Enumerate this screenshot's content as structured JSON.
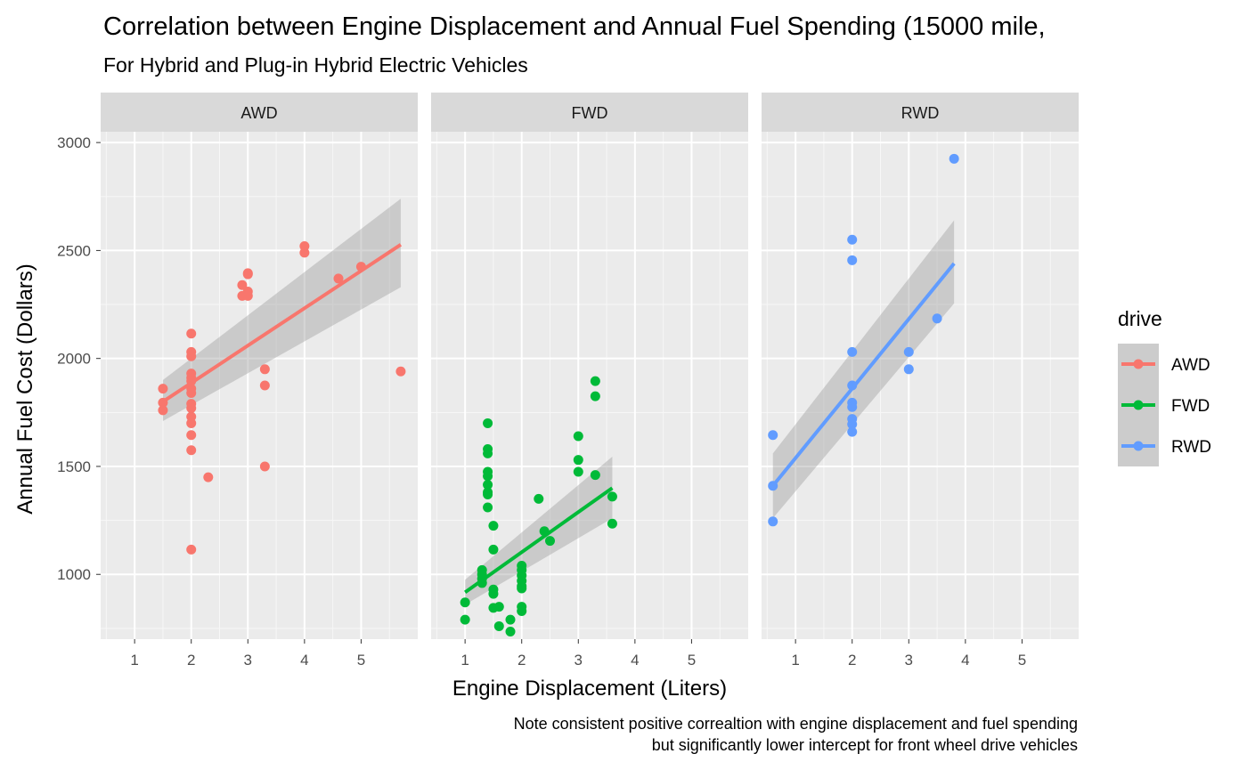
{
  "chart_data": {
    "type": "scatter",
    "title": "Correlation between Engine Displacement and Annual Fuel Spending (15000 mile,",
    "subtitle": "For Hybrid and Plug-in Hybrid Electric Vehicles",
    "xlabel": "Engine Displacement (Liters)",
    "ylabel": "Annual Fuel Cost (Dollars)",
    "caption": [
      "Note consistent positive correaltion with engine displacement and fuel spending",
      "but significantly lower intercept for front wheel drive vehicles"
    ],
    "xlim": [
      0.4,
      6.0
    ],
    "ylim": [
      700,
      3050
    ],
    "xticks": [
      1,
      2,
      3,
      4,
      5
    ],
    "yticks": [
      1000,
      1500,
      2000,
      2500,
      3000
    ],
    "grid": true,
    "legend": {
      "title": "drive",
      "position": "right",
      "entries": [
        "AWD",
        "FWD",
        "RWD"
      ]
    },
    "series": [
      {
        "name": "AWD",
        "color": "#F8766D",
        "x": [
          1.5,
          1.5,
          1.5,
          2,
          2,
          2,
          2,
          2,
          2,
          2,
          2,
          2,
          2,
          2,
          2,
          2,
          2,
          2,
          2.3,
          2.9,
          2.9,
          3,
          3,
          3,
          3,
          3.3,
          3.3,
          3.3,
          4,
          4,
          4.6,
          5,
          5.7
        ],
        "y": [
          1860,
          1795,
          1760,
          2115,
          2030,
          2010,
          1930,
          1910,
          1860,
          1840,
          1790,
          1770,
          1730,
          1700,
          1645,
          1575,
          1895,
          1115,
          1450,
          2340,
          2290,
          2395,
          2310,
          2290,
          2390,
          1950,
          1875,
          1500,
          2520,
          2490,
          2370,
          2425,
          1940
        ],
        "fit": {
          "x": [
            1.5,
            5.7
          ],
          "y": [
            1800,
            2527
          ],
          "ci_lower_start": 1710,
          "ci_upper_start": 1900,
          "ci_lower_end": 2330,
          "ci_upper_end": 2740
        }
      },
      {
        "name": "FWD",
        "color": "#00BA38",
        "x": [
          1,
          1,
          1.3,
          1.3,
          1.3,
          1.3,
          1.4,
          1.4,
          1.4,
          1.4,
          1.4,
          1.4,
          1.4,
          1.4,
          1.4,
          1.5,
          1.5,
          1.5,
          1.5,
          1.5,
          1.6,
          1.6,
          1.8,
          1.8,
          2,
          2,
          2,
          2,
          2,
          2,
          2,
          2,
          2.3,
          2.4,
          2.5,
          3,
          3,
          3,
          3.3,
          3.3,
          3.3,
          3.6,
          3.6
        ],
        "y": [
          870,
          790,
          1020,
          1000,
          980,
          960,
          1700,
          1580,
          1560,
          1475,
          1455,
          1415,
          1380,
          1370,
          1310,
          1225,
          1115,
          930,
          910,
          845,
          850,
          760,
          790,
          735,
          1040,
          1020,
          995,
          970,
          945,
          935,
          850,
          830,
          1350,
          1200,
          1155,
          1640,
          1530,
          1475,
          1895,
          1825,
          1460,
          1360,
          1235
        ],
        "fit": {
          "x": [
            1,
            3.6
          ],
          "y": [
            917,
            1400
          ],
          "ci_lower_start": 860,
          "ci_upper_start": 975,
          "ci_lower_end": 1260,
          "ci_upper_end": 1545
        }
      },
      {
        "name": "RWD",
        "color": "#619CFF",
        "x": [
          0.6,
          0.6,
          0.6,
          2,
          2,
          2,
          2,
          2,
          2,
          2,
          2,
          2,
          3,
          3,
          3.5,
          3.8
        ],
        "y": [
          1645,
          1410,
          1245,
          2550,
          2455,
          2030,
          1875,
          1795,
          1775,
          1720,
          1695,
          1660,
          2030,
          1950,
          2185,
          2925
        ],
        "fit": {
          "x": [
            0.6,
            3.8
          ],
          "y": [
            1410,
            2440
          ],
          "ci_lower_start": 1260,
          "ci_upper_start": 1560,
          "ci_lower_end": 2255,
          "ci_upper_end": 2640
        }
      }
    ]
  }
}
